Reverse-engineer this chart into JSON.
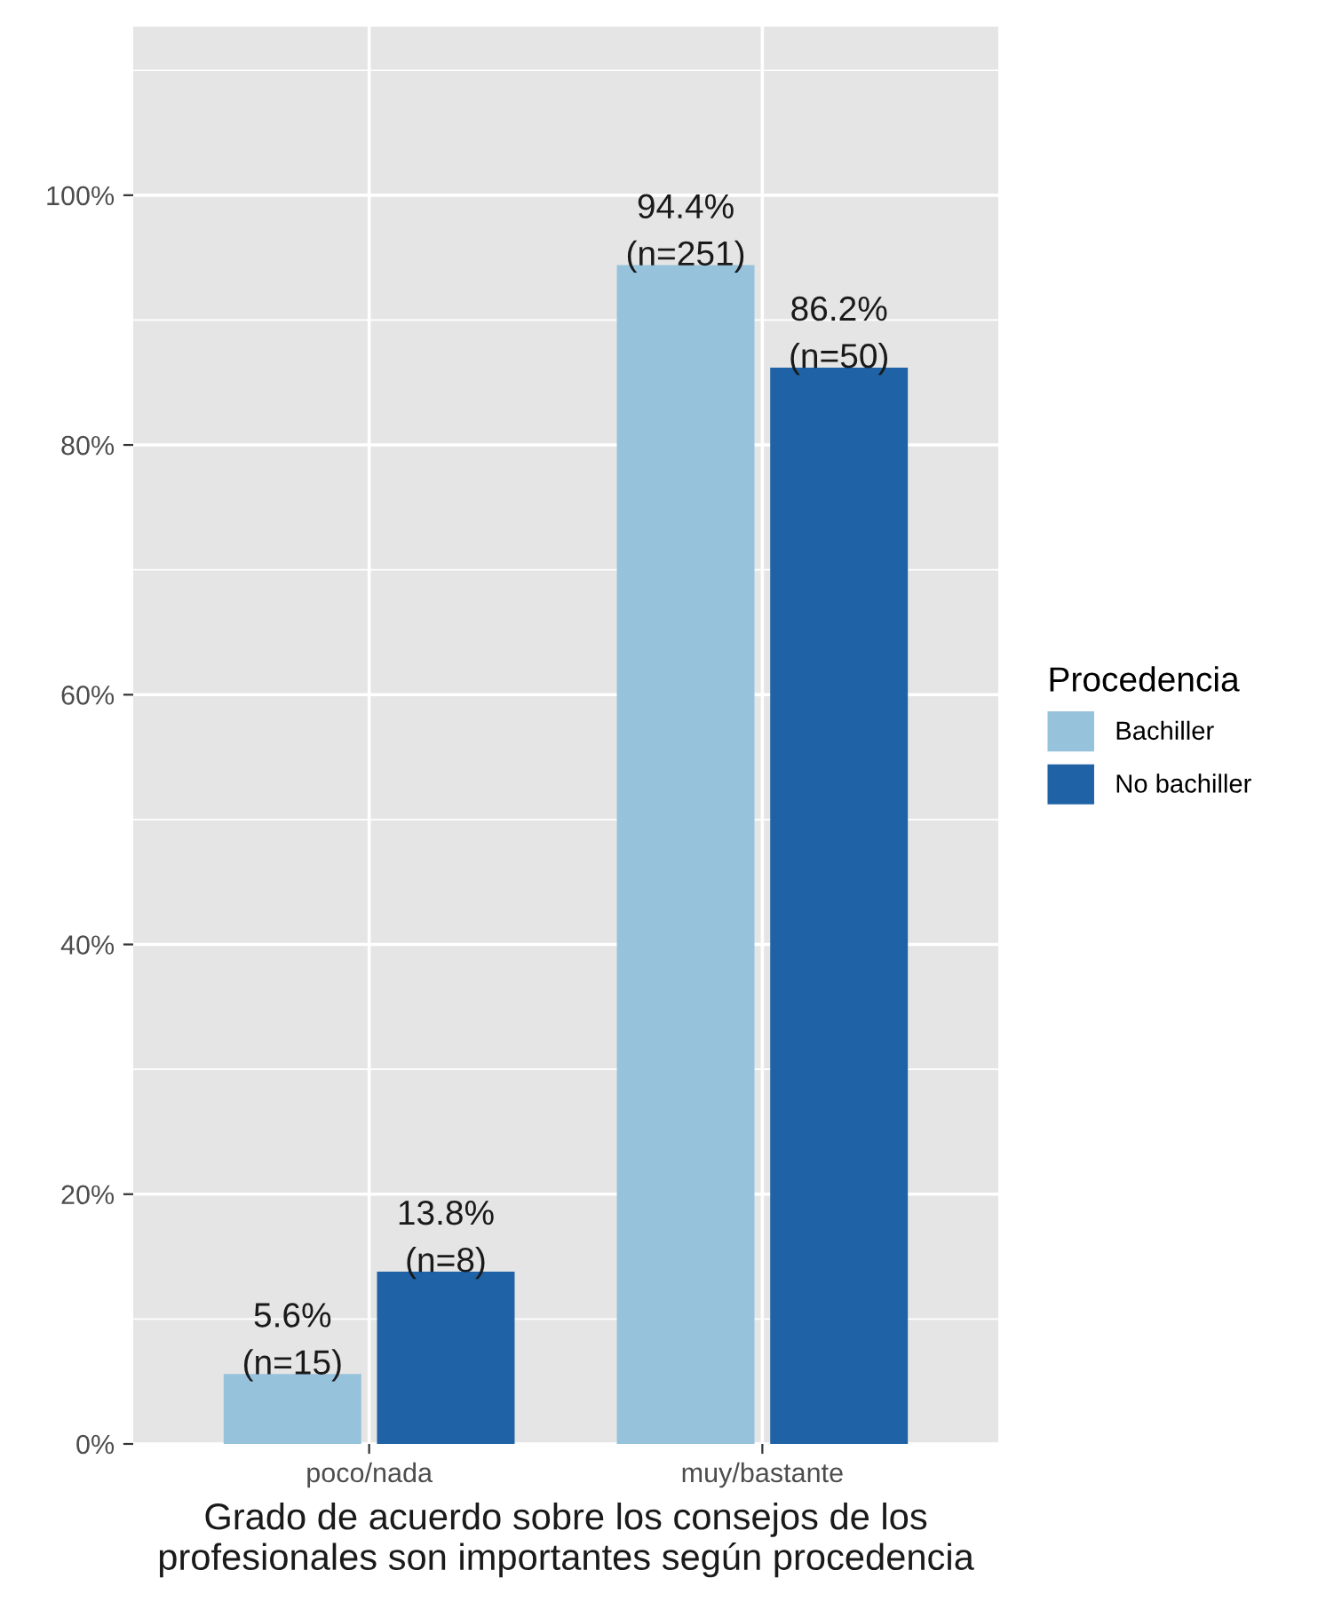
{
  "chart_data": {
    "type": "bar",
    "xlabel": "Grado de acuerdo sobre los consejos de los\nprofesionales son importantes según procedencia",
    "categories": [
      "poco/nada",
      "muy/bastante"
    ],
    "legend_title": "Procedencia",
    "legend": "right",
    "series": [
      {
        "name": "Bachiller",
        "color": "#96c2dc",
        "values": [
          5.6,
          94.4
        ],
        "value_labels": [
          "5.6%\n(n=15)",
          "94.4%\n(n=251)"
        ]
      },
      {
        "name": "No bachiller",
        "color": "#1f62a5",
        "values": [
          13.8,
          86.2
        ],
        "value_labels": [
          "13.8%\n(n=8)",
          "86.2%\n(n=50)"
        ]
      }
    ],
    "ylim": [
      0,
      113.5
    ],
    "yticks": [
      {
        "value": 0,
        "label": "0%"
      },
      {
        "value": 10,
        "label": null
      },
      {
        "value": 20,
        "label": "20%"
      },
      {
        "value": 30,
        "label": null
      },
      {
        "value": 40,
        "label": "40%"
      },
      {
        "value": 50,
        "label": null
      },
      {
        "value": 60,
        "label": "60%"
      },
      {
        "value": 70,
        "label": null
      },
      {
        "value": 80,
        "label": "80%"
      },
      {
        "value": 90,
        "label": null
      },
      {
        "value": 100,
        "label": "100%"
      },
      {
        "value": 110,
        "label": null
      }
    ],
    "grid": true
  }
}
